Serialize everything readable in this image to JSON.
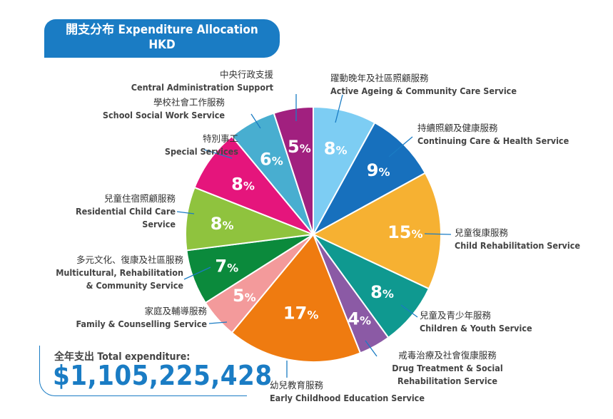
{
  "header": {
    "title_line1": "開支分布 Expenditure Allocation",
    "title_line2": "HKD"
  },
  "total": {
    "label": "全年支出 Total expenditure:",
    "value": "$1,105,225,428"
  },
  "chart_data": {
    "type": "pie",
    "title": "開支分布 Expenditure Allocation HKD",
    "start": "12 o'clock",
    "direction": "clockwise",
    "slices": [
      {
        "zh": "躍動晚年及社區照顧服務",
        "en": "Active Ageing & Community Care Service",
        "value": 8,
        "color": "#7dcdf3"
      },
      {
        "zh": "持續照顧及健康服務",
        "en": "Continuing Care & Health Service",
        "value": 9,
        "color": "#1770bd"
      },
      {
        "zh": "兒童復康服務",
        "en": "Child Rehabilitation Service",
        "value": 15,
        "color": "#f6b132"
      },
      {
        "zh": "兒童及青少年服務",
        "en": "Children & Youth Service",
        "value": 8,
        "color": "#0f9990"
      },
      {
        "zh": "戒毒治療及社會復康服務",
        "en": "Drug Treatment & Social Rehabilitation Service",
        "value": 4,
        "color": "#8b5aa5"
      },
      {
        "zh": "幼兒教育服務",
        "en": "Early Childhood Education Service",
        "value": 17,
        "color": "#ef7b10"
      },
      {
        "zh": "家庭及輔導服務",
        "en": "Family & Counselling Service",
        "value": 5,
        "color": "#f39a9b"
      },
      {
        "zh": "多元文化、復康及社區服務",
        "en": "Multicultural, Rehabilitation & Community Service",
        "value": 7,
        "color": "#0b8a3c"
      },
      {
        "zh": "兒童住宿照顧服務",
        "en": "Residential Child Care Service",
        "value": 8,
        "color": "#8fc33e"
      },
      {
        "zh": "特別事工",
        "en": "Special Services",
        "value": 8,
        "color": "#e5157c"
      },
      {
        "zh": "學校社會工作服務",
        "en": "School Social Work Service",
        "value": 6,
        "color": "#48aed0"
      },
      {
        "zh": "中央行政支援",
        "en": "Central Administration Support",
        "value": 5,
        "color": "#a1207f"
      }
    ]
  }
}
